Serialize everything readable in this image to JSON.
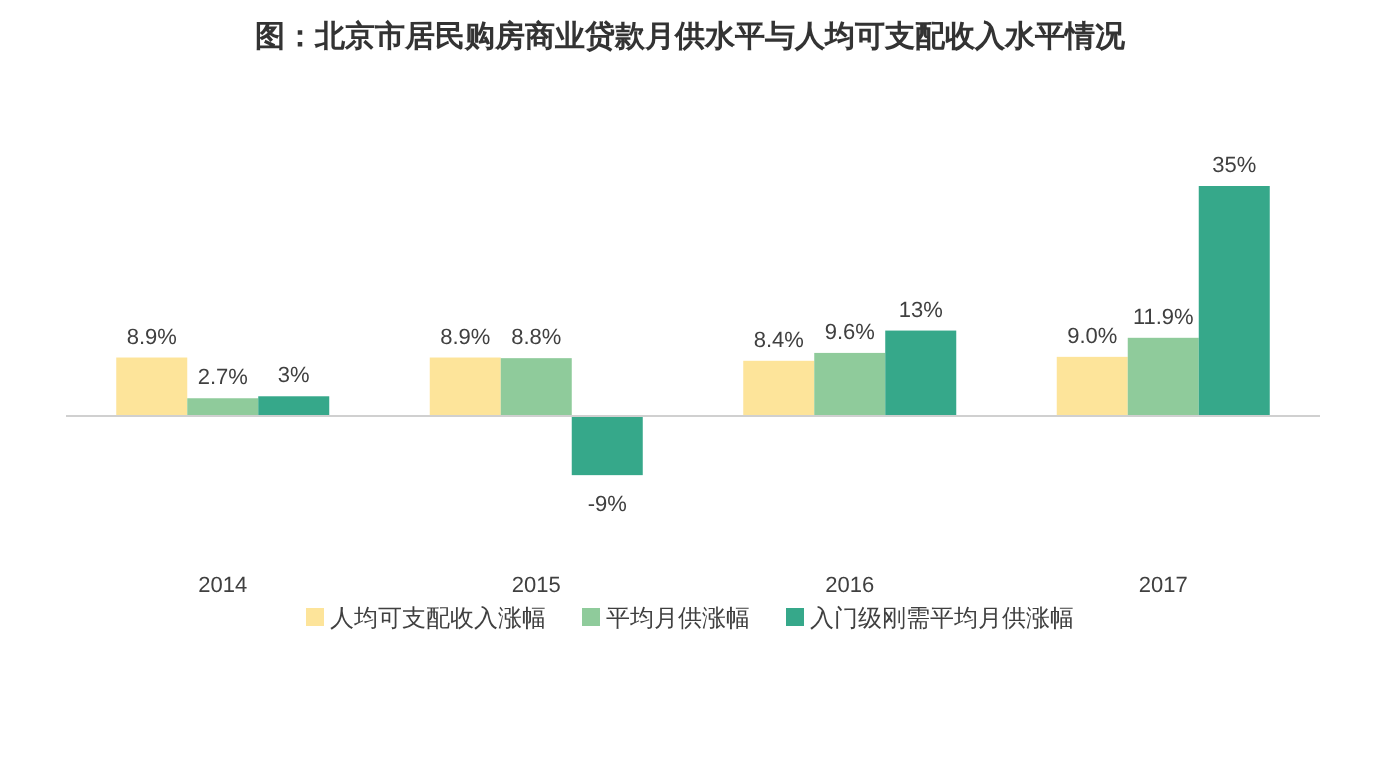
{
  "chart_data": {
    "type": "bar",
    "title": "图：北京市居民购房商业贷款月供水平与人均可支配收入水平情况",
    "categories": [
      "2014",
      "2015",
      "2016",
      "2017"
    ],
    "series": [
      {
        "name": "人均可支配收入涨幅",
        "color": "#fde49a",
        "values": [
          8.9,
          8.9,
          8.4,
          9.0
        ],
        "value_labels": [
          "8.9%",
          "8.9%",
          "8.4%",
          "9.0%"
        ]
      },
      {
        "name": "平均月供涨幅",
        "color": "#8fcb9b",
        "values": [
          2.7,
          8.8,
          9.6,
          11.9
        ],
        "value_labels": [
          "2.7%",
          "8.8%",
          "9.6%",
          "11.9%"
        ]
      },
      {
        "name": "入门级刚需平均月供涨幅",
        "color": "#36a88a",
        "values": [
          3,
          -9,
          13,
          35
        ],
        "value_labels": [
          "3%",
          "-9%",
          "13%",
          "35%"
        ]
      }
    ],
    "legend": "bottom"
  }
}
